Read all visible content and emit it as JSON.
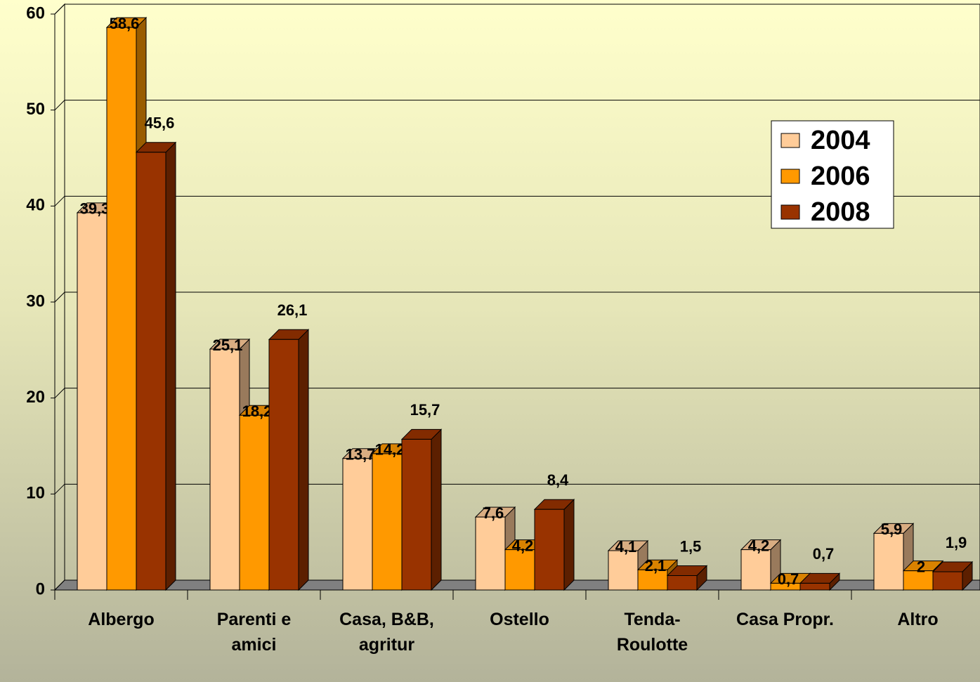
{
  "chart_data": {
    "type": "bar3d",
    "categories": [
      "Albergo",
      "Parenti e amici",
      "Casa, B&B, agritur",
      "Ostello",
      "Tenda-Roulotte",
      "Casa Propr.",
      "Altro"
    ],
    "series": [
      {
        "name": "2004",
        "color": "#ffcc99",
        "values": [
          39.3,
          25.1,
          13.7,
          7.6,
          4.1,
          4.2,
          5.9
        ],
        "value_labels": [
          "39,3",
          "25,1",
          "13,7",
          "7,6",
          "4,1",
          "4,2",
          "5,9"
        ]
      },
      {
        "name": "2006",
        "color": "#ff9900",
        "values": [
          58.6,
          18.2,
          14.2,
          4.2,
          2.1,
          0.7,
          2
        ],
        "value_labels": [
          "58,6",
          "18,2",
          "14,2",
          "4,2",
          "2,1",
          "0,7",
          "2"
        ]
      },
      {
        "name": "2008",
        "color": "#993300",
        "values": [
          45.6,
          26.1,
          15.7,
          8.4,
          1.5,
          0.7,
          1.9
        ],
        "value_labels": [
          "45,6",
          "26,1",
          "15,7",
          "8,4",
          "1,5",
          "0,7",
          "1,9"
        ]
      }
    ],
    "ylim": [
      0,
      60
    ],
    "yticks": [
      0,
      10,
      20,
      30,
      40,
      50,
      60
    ],
    "grid": true
  }
}
